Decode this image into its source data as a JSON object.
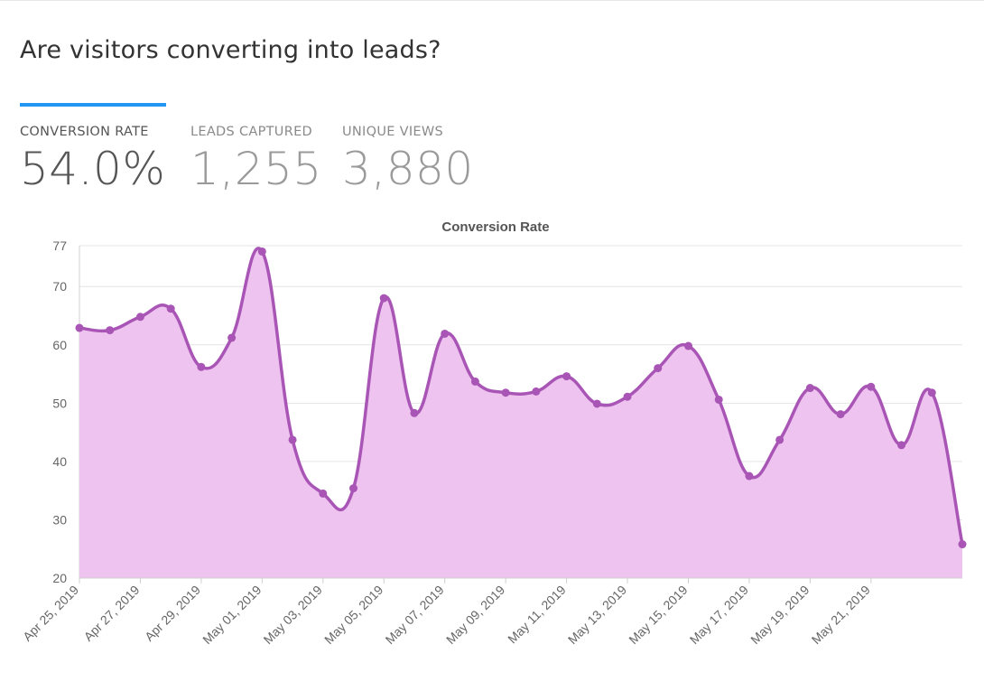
{
  "headline": "Are visitors converting into leads?",
  "metrics": [
    {
      "label": "CONVERSION RATE",
      "value": "54.0%",
      "active": true
    },
    {
      "label": "LEADS CAPTURED",
      "value": "1,255",
      "active": false
    },
    {
      "label": "UNIQUE VIEWS",
      "value": "3,880",
      "active": false
    }
  ],
  "colors": {
    "accent": "#2196f3",
    "line": "#a855b5",
    "fill": "#efc3f0"
  },
  "chart_data": {
    "type": "area",
    "title": "Conversion Rate",
    "xlabel": "",
    "ylabel": "",
    "ylim": [
      20,
      77
    ],
    "yticks": [
      20,
      30,
      40,
      50,
      60,
      70,
      77
    ],
    "grid": true,
    "x": [
      "Apr 25, 2019",
      "Apr 26, 2019",
      "Apr 27, 2019",
      "Apr 28, 2019",
      "Apr 29, 2019",
      "Apr 30, 2019",
      "May 01, 2019",
      "May 02, 2019",
      "May 03, 2019",
      "May 04, 2019",
      "May 05, 2019",
      "May 06, 2019",
      "May 07, 2019",
      "May 08, 2019",
      "May 09, 2019",
      "May 10, 2019",
      "May 11, 2019",
      "May 12, 2019",
      "May 13, 2019",
      "May 14, 2019",
      "May 15, 2019",
      "May 16, 2019",
      "May 17, 2019",
      "May 18, 2019",
      "May 19, 2019",
      "May 20, 2019",
      "May 21, 2019",
      "May 22, 2019",
      "May 23, 2019",
      "May 24, 2019"
    ],
    "tick_labels": [
      "Apr 25, 2019",
      "Apr 27, 2019",
      "Apr 29, 2019",
      "May 01, 2019",
      "May 03, 2019",
      "May 05, 2019",
      "May 07, 2019",
      "May 09, 2019",
      "May 11, 2019",
      "May 13, 2019",
      "May 15, 2019",
      "May 17, 2019",
      "May 19, 2019",
      "May 21, 2019"
    ],
    "series": [
      {
        "values": [
          62.9,
          62.5,
          64.8,
          66.2,
          56.2,
          61.2,
          76.0,
          43.7,
          34.5,
          35.4,
          68.0,
          48.3,
          61.9,
          53.7,
          51.8,
          52.0,
          54.6,
          49.9,
          51.1,
          56.0,
          59.8,
          50.6,
          37.5,
          43.7,
          52.6,
          48.1,
          52.8,
          42.8,
          51.8,
          25.8
        ]
      }
    ]
  }
}
